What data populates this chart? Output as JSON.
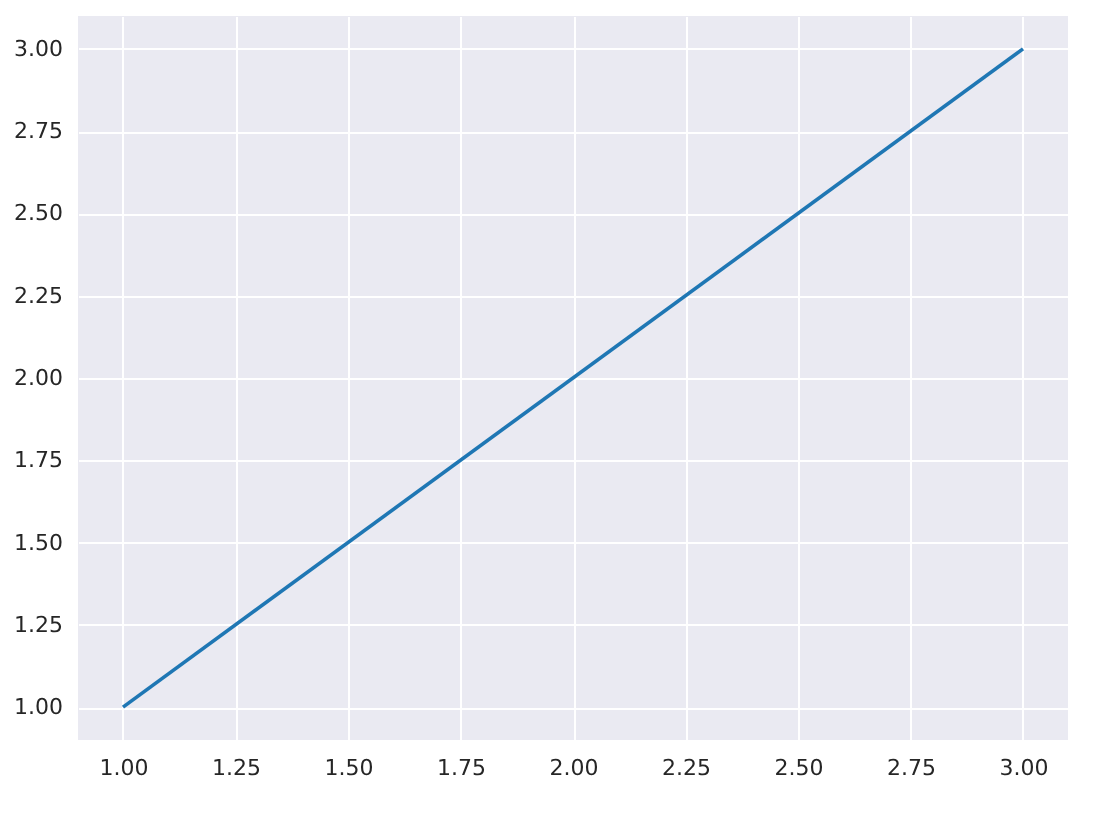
{
  "chart_data": {
    "type": "line",
    "x": [
      1,
      3
    ],
    "series": [
      {
        "color": "#1f77b4",
        "values": [
          1,
          3
        ]
      }
    ],
    "xlim": [
      0.9,
      3.1
    ],
    "ylim": [
      0.9,
      3.1
    ],
    "xticks": [
      {
        "value": 1,
        "label": "1.00"
      },
      {
        "value": 1.25,
        "label": "1.25"
      },
      {
        "value": 1.5,
        "label": "1.50"
      },
      {
        "value": 1.75,
        "label": "1.75"
      },
      {
        "value": 2,
        "label": "2.00"
      },
      {
        "value": 2.25,
        "label": "2.25"
      },
      {
        "value": 2.5,
        "label": "2.50"
      },
      {
        "value": 2.75,
        "label": "2.75"
      },
      {
        "value": 3,
        "label": "3.00"
      }
    ],
    "yticks": [
      {
        "value": 1,
        "label": "1.00"
      },
      {
        "value": 1.25,
        "label": "1.25"
      },
      {
        "value": 1.5,
        "label": "1.50"
      },
      {
        "value": 1.75,
        "label": "1.75"
      },
      {
        "value": 2,
        "label": "2.00"
      },
      {
        "value": 2.25,
        "label": "2.25"
      },
      {
        "value": 2.5,
        "label": "2.50"
      },
      {
        "value": 2.75,
        "label": "2.75"
      },
      {
        "value": 3,
        "label": "3.00"
      }
    ],
    "grid": true,
    "marker": "none",
    "line_style": "solid"
  }
}
